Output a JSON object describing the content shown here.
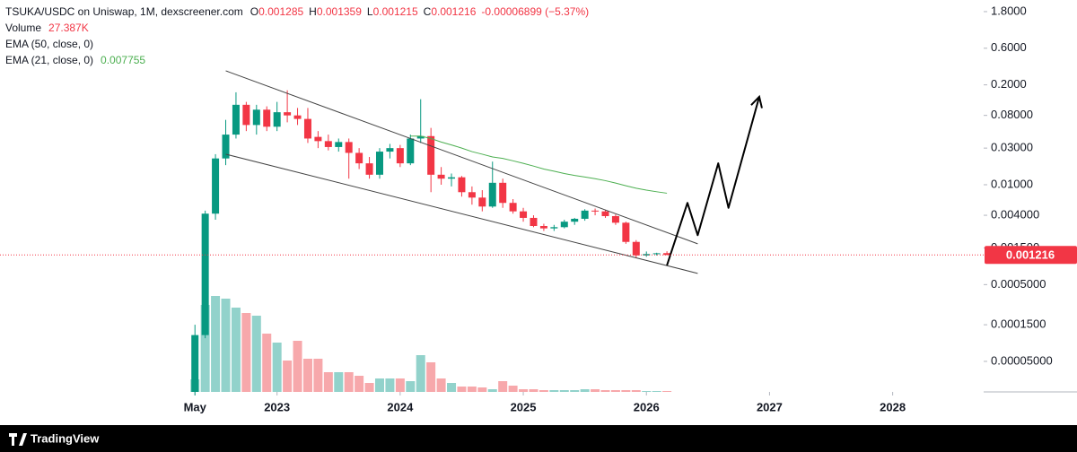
{
  "chart_data": {
    "type": "candlestick",
    "header": {
      "symbol": "TSUKA/USDC on Uniswap, 1M, dexscreener.com",
      "ohlc": [
        {
          "key": "O",
          "value": "0.001285"
        },
        {
          "key": "H",
          "value": "0.001359"
        },
        {
          "key": "L",
          "value": "0.001215"
        },
        {
          "key": "C",
          "value": "0.001216"
        }
      ],
      "change": "-0.00006899 (−5.37%)",
      "volume_label": "Volume",
      "volume_value": "27.387K",
      "ema50": "EMA (50, close, 0)",
      "ema21": "EMA (21, close, 0)",
      "ema21_value": "0.007755"
    },
    "branding": "TradingView",
    "x": [
      "2022-05",
      "2022-06",
      "2022-07",
      "2022-08",
      "2022-09",
      "2022-10",
      "2022-11",
      "2022-12",
      "2023-01",
      "2023-02",
      "2023-03",
      "2023-04",
      "2023-05",
      "2023-06",
      "2023-07",
      "2023-08",
      "2023-09",
      "2023-10",
      "2023-11",
      "2023-12",
      "2024-01",
      "2024-02",
      "2024-03",
      "2024-04",
      "2024-05",
      "2024-06",
      "2024-07",
      "2024-08",
      "2024-09",
      "2024-10",
      "2024-11",
      "2024-12",
      "2025-01",
      "2025-02",
      "2025-03",
      "2025-04",
      "2025-05",
      "2025-06",
      "2025-07",
      "2025-08",
      "2025-09",
      "2025-10",
      "2025-11",
      "2025-12",
      "2026-01",
      "2026-02",
      "2026-03"
    ],
    "open": [
      2e-05,
      0.00011,
      0.0042,
      0.022,
      0.045,
      0.11,
      0.06,
      0.095,
      0.057,
      0.088,
      0.08,
      0.072,
      0.042,
      0.037,
      0.031,
      0.036,
      0.026,
      0.019,
      0.0135,
      0.027,
      0.03,
      0.019,
      0.04,
      0.043,
      0.0135,
      0.012,
      0.0125,
      0.008,
      0.0068,
      0.0052,
      0.0106,
      0.0058,
      0.0045,
      0.0037,
      0.0029,
      0.0027,
      0.0028,
      0.0033,
      0.0036,
      0.0046,
      0.0045,
      0.0039,
      0.0032,
      0.0018,
      0.0012,
      0.00125,
      0.001285
    ],
    "high": [
      0.00015,
      0.0046,
      0.025,
      0.07,
      0.16,
      0.12,
      0.11,
      0.105,
      0.12,
      0.17,
      0.1,
      0.1,
      0.05,
      0.045,
      0.04,
      0.04,
      0.03,
      0.023,
      0.03,
      0.034,
      0.033,
      0.045,
      0.13,
      0.055,
      0.017,
      0.014,
      0.013,
      0.0095,
      0.0085,
      0.02,
      0.012,
      0.0065,
      0.005,
      0.004,
      0.0031,
      0.003,
      0.0035,
      0.0037,
      0.0048,
      0.0049,
      0.0047,
      0.0041,
      0.0033,
      0.0019,
      0.00135,
      0.0013,
      0.001359
    ],
    "low": [
      1.8e-05,
      0.0001,
      0.0035,
      0.018,
      0.04,
      0.05,
      0.045,
      0.05,
      0.05,
      0.065,
      0.06,
      0.035,
      0.03,
      0.028,
      0.027,
      0.012,
      0.016,
      0.012,
      0.012,
      0.022,
      0.017,
      0.018,
      0.035,
      0.008,
      0.01,
      0.0095,
      0.007,
      0.0055,
      0.0045,
      0.005,
      0.005,
      0.0042,
      0.0033,
      0.0028,
      0.0025,
      0.0025,
      0.0027,
      0.003,
      0.0034,
      0.004,
      0.0037,
      0.003,
      0.0017,
      0.0011,
      0.00115,
      0.0012,
      0.001215
    ],
    "close": [
      0.00011,
      0.0042,
      0.022,
      0.045,
      0.11,
      0.06,
      0.095,
      0.057,
      0.088,
      0.08,
      0.072,
      0.04,
      0.037,
      0.031,
      0.036,
      0.026,
      0.019,
      0.0135,
      0.027,
      0.03,
      0.019,
      0.04,
      0.043,
      0.0135,
      0.012,
      0.0125,
      0.008,
      0.0068,
      0.0052,
      0.0106,
      0.0058,
      0.0045,
      0.0037,
      0.0029,
      0.0027,
      0.0028,
      0.0033,
      0.0036,
      0.0046,
      0.0045,
      0.0039,
      0.0032,
      0.0018,
      0.0012,
      0.00125,
      0.00128,
      0.001216
    ],
    "volume": [
      378000,
      2619000,
      2889000,
      2808000,
      2538000,
      2376000,
      2295000,
      1755000,
      1485000,
      945000,
      1539000,
      999000,
      999000,
      594000,
      594000,
      594000,
      486000,
      270000,
      405000,
      405000,
      405000,
      324000,
      1107000,
      891000,
      405000,
      270000,
      162000,
      162000,
      135000,
      81000,
      324000,
      189000,
      81000,
      81000,
      54000,
      54000,
      54000,
      54000,
      81000,
      81000,
      54000,
      54000,
      54000,
      54000,
      27000,
      27000,
      27387
    ],
    "up_color": "#089981",
    "down_color": "#f23645",
    "volume_up_color": "#92d2cb",
    "volume_down_color": "#f7a8ab",
    "ema21": {
      "color": "#4caf50",
      "values": [
        null,
        null,
        null,
        null,
        null,
        null,
        null,
        null,
        null,
        null,
        null,
        null,
        null,
        null,
        null,
        null,
        null,
        null,
        null,
        null,
        null,
        0.043,
        0.043,
        0.04,
        0.036,
        0.033,
        0.03,
        0.027,
        0.025,
        0.023,
        0.022,
        0.0205,
        0.019,
        0.0175,
        0.016,
        0.015,
        0.014,
        0.0132,
        0.0126,
        0.012,
        0.0113,
        0.0105,
        0.0097,
        0.009,
        0.0085,
        0.0081,
        0.007755
      ]
    },
    "trendlines": [
      {
        "x": [
          "2022-08",
          "2026-06"
        ],
        "y": [
          0.305,
          0.0017
        ],
        "color": "#444444"
      },
      {
        "x": [
          "2022-08",
          "2026-06"
        ],
        "y": [
          0.025,
          0.0007
        ],
        "color": "#444444"
      }
    ],
    "arrow": {
      "x": [
        "2026-03",
        "2026-05",
        "2026-06",
        "2026-08",
        "2026-09",
        "2026-12"
      ],
      "y": [
        0.00089,
        0.0058,
        0.0022,
        0.019,
        0.005,
        0.14
      ],
      "color": "#000000"
    },
    "log_scale": true,
    "ylim": [
      2e-05,
      2.55
    ],
    "yticks": [
      {
        "value": 1.8,
        "label": "1.8000"
      },
      {
        "value": 0.6,
        "label": "0.6000"
      },
      {
        "value": 0.2,
        "label": "0.2000"
      },
      {
        "value": 0.08,
        "label": "0.08000"
      },
      {
        "value": 0.03,
        "label": "0.03000"
      },
      {
        "value": 0.01,
        "label": "0.01000"
      },
      {
        "value": 0.004,
        "label": "0.004000"
      },
      {
        "value": 0.0015,
        "label": "0.001500"
      },
      {
        "value": 0.0005,
        "label": "0.0005000"
      },
      {
        "value": 0.00015,
        "label": "0.0001500"
      },
      {
        "value": 5e-05,
        "label": "0.00005000"
      }
    ],
    "xlim": [
      "2020-10",
      "2028-10"
    ],
    "xticks": [
      {
        "value": "2022-05",
        "label": "May"
      },
      {
        "value": "2023-01",
        "label": "2023"
      },
      {
        "value": "2024-01",
        "label": "2024"
      },
      {
        "value": "2025-01",
        "label": "2025"
      },
      {
        "value": "2026-01",
        "label": "2026"
      },
      {
        "value": "2027-01",
        "label": "2027"
      },
      {
        "value": "2028-01",
        "label": "2028"
      }
    ]
  }
}
